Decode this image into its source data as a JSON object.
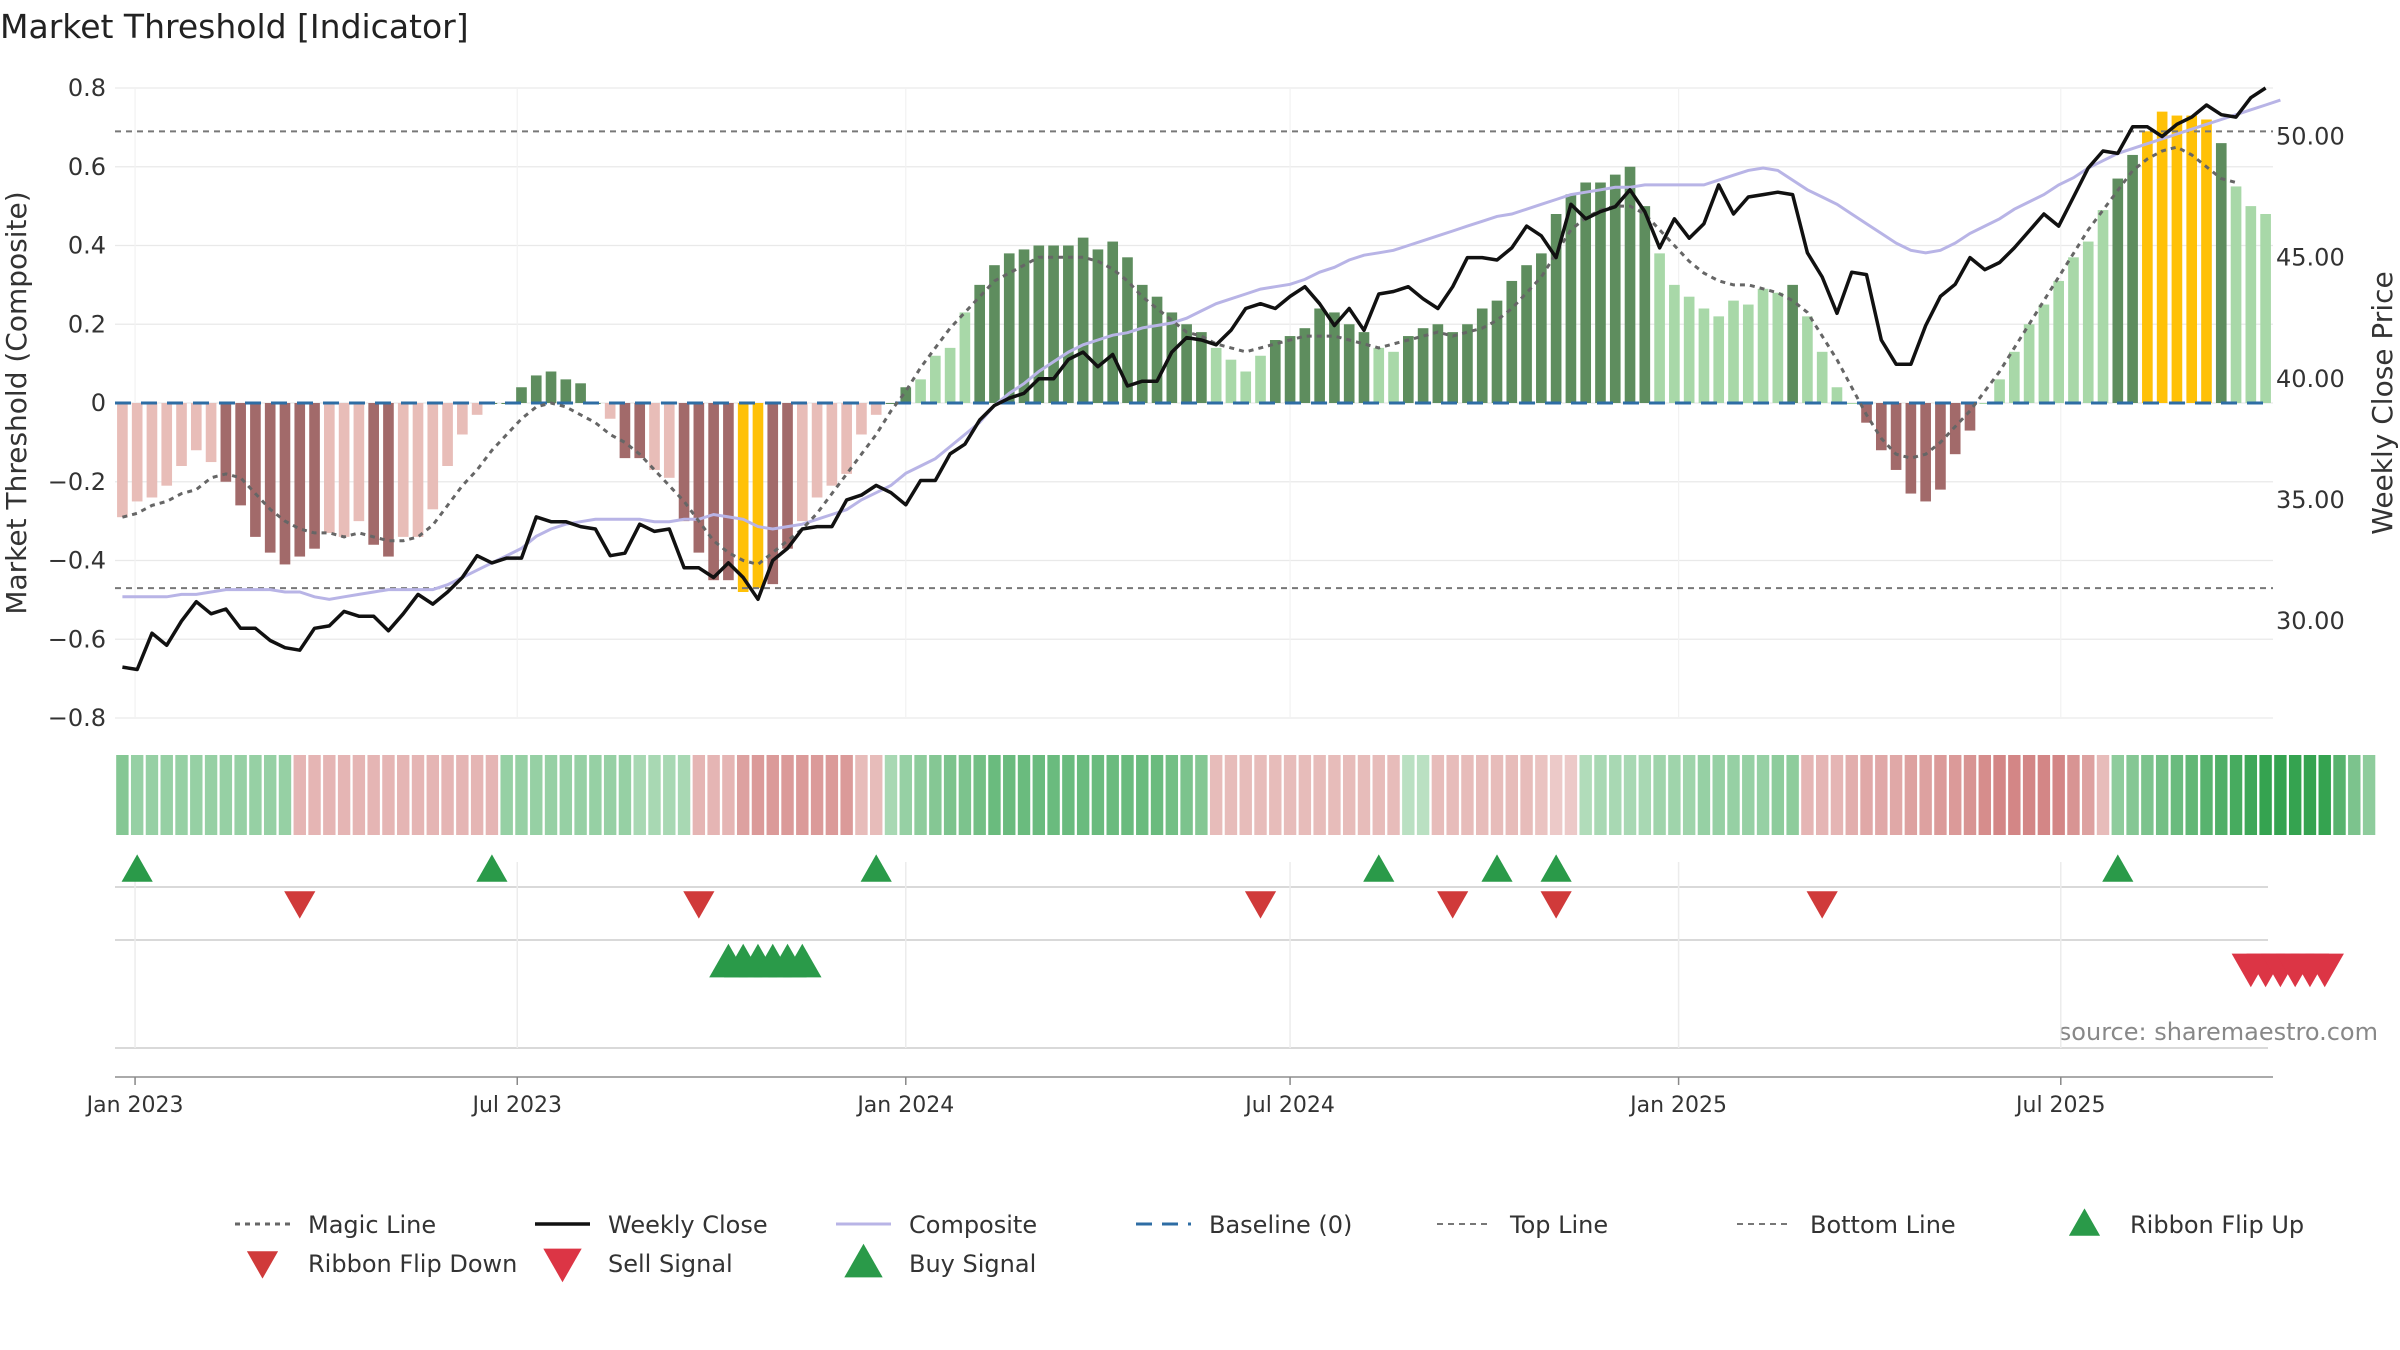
{
  "chart_data": {
    "type": "bar",
    "title": "Market Threshold [Indicator]",
    "ylabel_left": "Market Threshold (Composite)",
    "ylabel_right": "Weekly Close Price",
    "ylim_left": [
      -0.8,
      0.8
    ],
    "ylim_right": [
      26,
      52
    ],
    "yticks_left": [
      {
        "v": 0.8,
        "label": "0.8"
      },
      {
        "v": 0.6,
        "label": "0.6"
      },
      {
        "v": 0.4,
        "label": "0.4"
      },
      {
        "v": 0.2,
        "label": "0.2"
      },
      {
        "v": 0,
        "label": "0"
      },
      {
        "v": -0.2,
        "label": "−0.2"
      },
      {
        "v": -0.4,
        "label": "−0.4"
      },
      {
        "v": -0.6,
        "label": "−0.6"
      },
      {
        "v": -0.8,
        "label": "−0.8"
      }
    ],
    "yticks_right": [
      {
        "v": 50,
        "label": "50.00"
      },
      {
        "v": 45,
        "label": "45.00"
      },
      {
        "v": 40,
        "label": "40.00"
      },
      {
        "v": 35,
        "label": "35.00"
      },
      {
        "v": 30,
        "label": "30.00"
      }
    ],
    "x_start": "2022-12-26",
    "x_ticks": [
      {
        "date": "2023-01-01",
        "label": "Jan 2023"
      },
      {
        "date": "2023-07-01",
        "label": "Jul 2023"
      },
      {
        "date": "2024-01-01",
        "label": "Jan 2024"
      },
      {
        "date": "2024-07-01",
        "label": "Jul 2024"
      },
      {
        "date": "2025-01-01",
        "label": "Jan 2025"
      },
      {
        "date": "2025-07-01",
        "label": "Jul 2025"
      }
    ],
    "top_line": 0.69,
    "bottom_line": -0.47,
    "composite_bars": [
      -0.29,
      -0.25,
      -0.24,
      -0.21,
      -0.16,
      -0.12,
      -0.15,
      -0.2,
      -0.26,
      -0.34,
      -0.38,
      -0.41,
      -0.39,
      -0.37,
      -0.33,
      -0.34,
      -0.3,
      -0.36,
      -0.39,
      -0.34,
      -0.34,
      -0.27,
      -0.16,
      -0.08,
      -0.03,
      0.0,
      0.0,
      0.04,
      0.07,
      0.08,
      0.06,
      0.05,
      0.0,
      -0.04,
      -0.14,
      -0.14,
      -0.17,
      -0.19,
      -0.3,
      -0.38,
      -0.45,
      -0.45,
      -0.48,
      -0.47,
      -0.46,
      -0.37,
      -0.3,
      -0.24,
      -0.21,
      -0.18,
      -0.08,
      -0.03,
      0.0,
      0.04,
      0.06,
      0.12,
      0.14,
      0.23,
      0.3,
      0.35,
      0.38,
      0.39,
      0.4,
      0.4,
      0.4,
      0.42,
      0.39,
      0.41,
      0.37,
      0.3,
      0.27,
      0.23,
      0.2,
      0.18,
      0.14,
      0.11,
      0.08,
      0.12,
      0.16,
      0.17,
      0.19,
      0.24,
      0.23,
      0.2,
      0.18,
      0.14,
      0.13,
      0.17,
      0.19,
      0.2,
      0.18,
      0.2,
      0.24,
      0.26,
      0.31,
      0.35,
      0.38,
      0.48,
      0.53,
      0.56,
      0.56,
      0.58,
      0.6,
      0.5,
      0.38,
      0.3,
      0.27,
      0.24,
      0.22,
      0.26,
      0.25,
      0.29,
      0.28,
      0.3,
      0.22,
      0.13,
      0.04,
      0.0,
      -0.05,
      -0.12,
      -0.17,
      -0.23,
      -0.25,
      -0.22,
      -0.13,
      -0.07,
      0.0,
      0.06,
      0.13,
      0.2,
      0.25,
      0.31,
      0.37,
      0.41,
      0.49,
      0.57,
      0.63,
      0.69,
      0.74,
      0.73,
      0.73,
      0.72,
      0.66,
      0.55,
      0.5,
      0.48
    ],
    "magic_line": [
      -0.29,
      -0.28,
      -0.26,
      -0.25,
      -0.23,
      -0.22,
      -0.19,
      -0.18,
      -0.19,
      -0.23,
      -0.27,
      -0.3,
      -0.32,
      -0.33,
      -0.33,
      -0.34,
      -0.33,
      -0.34,
      -0.35,
      -0.35,
      -0.34,
      -0.31,
      -0.26,
      -0.21,
      -0.17,
      -0.12,
      -0.08,
      -0.04,
      -0.01,
      0.0,
      -0.01,
      -0.03,
      -0.05,
      -0.08,
      -0.1,
      -0.13,
      -0.17,
      -0.21,
      -0.25,
      -0.3,
      -0.35,
      -0.38,
      -0.4,
      -0.41,
      -0.38,
      -0.35,
      -0.32,
      -0.28,
      -0.23,
      -0.18,
      -0.13,
      -0.08,
      -0.02,
      0.03,
      0.09,
      0.14,
      0.19,
      0.23,
      0.27,
      0.31,
      0.33,
      0.35,
      0.37,
      0.37,
      0.37,
      0.37,
      0.36,
      0.34,
      0.31,
      0.27,
      0.24,
      0.21,
      0.18,
      0.17,
      0.15,
      0.14,
      0.13,
      0.14,
      0.15,
      0.16,
      0.17,
      0.17,
      0.17,
      0.16,
      0.15,
      0.14,
      0.15,
      0.16,
      0.17,
      0.18,
      0.17,
      0.18,
      0.19,
      0.21,
      0.24,
      0.28,
      0.32,
      0.38,
      0.44,
      0.47,
      0.49,
      0.5,
      0.5,
      0.48,
      0.44,
      0.4,
      0.36,
      0.33,
      0.31,
      0.3,
      0.3,
      0.29,
      0.28,
      0.26,
      0.23,
      0.17,
      0.11,
      0.04,
      -0.03,
      -0.09,
      -0.13,
      -0.14,
      -0.13,
      -0.1,
      -0.06,
      -0.02,
      0.03,
      0.08,
      0.14,
      0.2,
      0.26,
      0.32,
      0.38,
      0.44,
      0.49,
      0.54,
      0.59,
      0.62,
      0.64,
      0.65,
      0.63,
      0.6,
      0.57,
      0.56
    ],
    "weekly_close": [
      28.1,
      28.0,
      29.5,
      29.0,
      30.0,
      30.8,
      30.3,
      30.5,
      29.7,
      29.7,
      29.2,
      28.9,
      28.8,
      29.7,
      29.8,
      30.4,
      30.2,
      30.2,
      29.6,
      30.3,
      31.1,
      30.7,
      31.2,
      31.8,
      32.7,
      32.4,
      32.6,
      32.6,
      34.3,
      34.1,
      34.1,
      33.9,
      33.8,
      32.7,
      32.8,
      34.0,
      33.7,
      33.8,
      32.2,
      32.2,
      31.8,
      32.4,
      31.8,
      30.9,
      32.5,
      33.0,
      33.8,
      33.9,
      33.9,
      35.0,
      35.2,
      35.6,
      35.3,
      34.8,
      35.8,
      35.8,
      36.9,
      37.3,
      38.3,
      38.9,
      39.2,
      39.4,
      40.0,
      40.0,
      40.8,
      41.1,
      40.5,
      41.0,
      39.7,
      39.9,
      39.9,
      41.1,
      41.7,
      41.6,
      41.4,
      42.0,
      42.9,
      43.1,
      42.9,
      43.4,
      43.8,
      43.1,
      42.2,
      42.9,
      42.0,
      43.5,
      43.6,
      43.8,
      43.3,
      42.9,
      43.8,
      45.0,
      45.0,
      44.9,
      45.4,
      46.3,
      45.9,
      45.0,
      47.2,
      46.6,
      46.9,
      47.1,
      47.8,
      46.9,
      45.4,
      46.6,
      45.8,
      46.4,
      48.0,
      46.8,
      47.5,
      47.6,
      47.7,
      47.6,
      45.2,
      44.2,
      42.7,
      44.4,
      44.3,
      41.6,
      40.6,
      40.6,
      42.2,
      43.4,
      43.9,
      45.0,
      44.5,
      44.8,
      45.4,
      46.1,
      46.8,
      46.3,
      47.5,
      48.7,
      49.4,
      49.3,
      50.4,
      50.4,
      50.0,
      50.5,
      50.8,
      51.3,
      50.9,
      50.8,
      51.6,
      52.0
    ],
    "composite_line": [
      31.0,
      31.0,
      31.0,
      31.0,
      31.1,
      31.1,
      31.2,
      31.3,
      31.3,
      31.3,
      31.3,
      31.2,
      31.2,
      31.0,
      30.9,
      31.0,
      31.1,
      31.2,
      31.3,
      31.3,
      31.3,
      31.3,
      31.5,
      31.8,
      32.1,
      32.4,
      32.7,
      33.0,
      33.5,
      33.8,
      34.0,
      34.1,
      34.2,
      34.2,
      34.2,
      34.2,
      34.1,
      34.1,
      34.2,
      34.2,
      34.4,
      34.3,
      34.2,
      33.9,
      33.8,
      33.9,
      34.0,
      34.2,
      34.4,
      34.6,
      35.0,
      35.3,
      35.6,
      36.1,
      36.4,
      36.7,
      37.2,
      37.7,
      38.2,
      38.9,
      39.4,
      39.8,
      40.3,
      40.7,
      41.1,
      41.4,
      41.6,
      41.8,
      41.9,
      42.1,
      42.2,
      42.3,
      42.5,
      42.8,
      43.1,
      43.3,
      43.5,
      43.7,
      43.8,
      43.9,
      44.1,
      44.4,
      44.6,
      44.9,
      45.1,
      45.2,
      45.3,
      45.5,
      45.7,
      45.9,
      46.1,
      46.3,
      46.5,
      46.7,
      46.8,
      47.0,
      47.2,
      47.4,
      47.6,
      47.7,
      47.8,
      47.9,
      47.9,
      48.0,
      48.0,
      48.0,
      48.0,
      48.0,
      48.2,
      48.4,
      48.6,
      48.7,
      48.6,
      48.2,
      47.8,
      47.5,
      47.2,
      46.8,
      46.4,
      46.0,
      45.6,
      45.3,
      45.2,
      45.3,
      45.6,
      46.0,
      46.3,
      46.6,
      47.0,
      47.3,
      47.6,
      48.0,
      48.3,
      48.7,
      49.0,
      49.3,
      49.5,
      49.7,
      49.9,
      50.1,
      50.3,
      50.5,
      50.7,
      50.9,
      51.1,
      51.3,
      51.5
    ],
    "ribbon_intensity": [
      0.55,
      0.45,
      0.45,
      0.45,
      0.45,
      0.45,
      0.45,
      0.45,
      0.45,
      0.45,
      0.45,
      0.45,
      -0.35,
      -0.35,
      -0.35,
      -0.35,
      -0.35,
      -0.35,
      -0.35,
      -0.35,
      -0.35,
      -0.35,
      -0.35,
      -0.35,
      -0.35,
      -0.35,
      0.45,
      0.45,
      0.45,
      0.45,
      0.45,
      0.45,
      0.45,
      0.45,
      0.45,
      0.35,
      0.35,
      0.35,
      0.35,
      -0.35,
      -0.35,
      -0.35,
      -0.5,
      -0.55,
      -0.55,
      -0.55,
      -0.55,
      -0.55,
      -0.55,
      -0.55,
      -0.3,
      -0.3,
      0.35,
      0.45,
      0.5,
      0.55,
      0.6,
      0.6,
      0.65,
      0.7,
      0.7,
      0.7,
      0.7,
      0.7,
      0.7,
      0.7,
      0.7,
      0.7,
      0.7,
      0.7,
      0.7,
      0.65,
      0.6,
      0.55,
      -0.3,
      -0.3,
      -0.3,
      -0.3,
      -0.3,
      -0.3,
      -0.3,
      -0.3,
      -0.3,
      -0.3,
      -0.3,
      -0.3,
      -0.3,
      0.25,
      0.25,
      -0.3,
      -0.3,
      -0.3,
      -0.3,
      -0.3,
      -0.3,
      -0.3,
      -0.25,
      -0.2,
      -0.2,
      0.3,
      0.35,
      0.35,
      0.35,
      0.35,
      0.4,
      0.4,
      0.4,
      0.45,
      0.45,
      0.45,
      0.45,
      0.45,
      0.5,
      0.5,
      -0.35,
      -0.35,
      -0.35,
      -0.4,
      -0.45,
      -0.45,
      -0.45,
      -0.5,
      -0.5,
      -0.55,
      -0.55,
      -0.6,
      -0.65,
      -0.7,
      -0.7,
      -0.7,
      -0.7,
      -0.7,
      -0.6,
      -0.5,
      -0.3,
      0.5,
      0.55,
      0.6,
      0.65,
      0.7,
      0.75,
      0.8,
      0.85,
      0.9,
      0.95,
      1.0,
      1.0,
      1.0,
      1.0,
      1.0,
      0.8,
      0.6,
      0.5
    ],
    "ribbon_flip_up": [
      1,
      25,
      51,
      85,
      93,
      97,
      135
    ],
    "ribbon_flip_down": [
      12,
      39,
      77,
      90,
      97,
      115
    ],
    "buy_signal": [
      41,
      42,
      43,
      44,
      45,
      46
    ],
    "sell_signal": [
      144,
      145,
      146,
      147,
      148,
      149
    ],
    "legend": [
      {
        "key": "magic",
        "label": "Magic Line"
      },
      {
        "key": "close",
        "label": "Weekly Close"
      },
      {
        "key": "composite",
        "label": "Composite"
      },
      {
        "key": "baseline",
        "label": "Baseline (0)"
      },
      {
        "key": "top",
        "label": "Top Line"
      },
      {
        "key": "bottom",
        "label": "Bottom Line"
      },
      {
        "key": "flipup",
        "label": "Ribbon Flip Up"
      },
      {
        "key": "flipdown",
        "label": "Ribbon Flip Down"
      },
      {
        "key": "sell",
        "label": "Sell Signal"
      },
      {
        "key": "buy",
        "label": "Buy Signal"
      }
    ],
    "colors": {
      "bar_pos_strong": "#5e8d5e",
      "bar_pos_light": "#a8d8a8",
      "bar_neg_strong": "#a26a6a",
      "bar_neg_light": "#e8bdb8",
      "bar_extreme": "#ffc107",
      "close": "#111111",
      "composite_line": "#b8b4e6",
      "magic": "#666666",
      "baseline": "#2e6da4",
      "flip_up": "#2a9a49",
      "flip_down": "#d03a3a",
      "sell": "#dc3545",
      "buy": "#2a9a49"
    }
  },
  "source": "source: sharemaestro.com"
}
